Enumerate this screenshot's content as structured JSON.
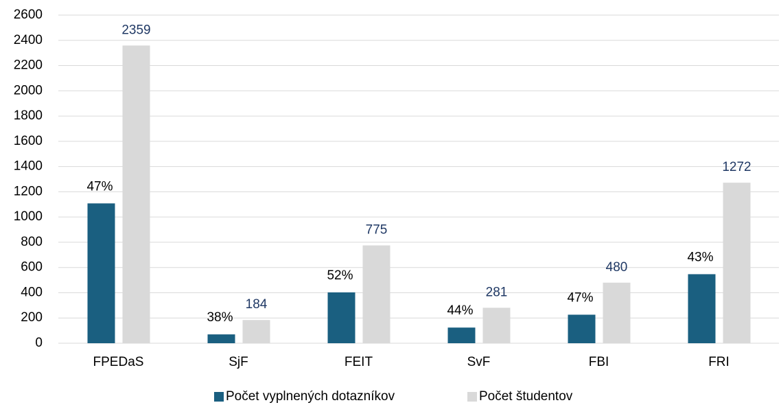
{
  "chart_data": {
    "type": "bar",
    "categories": [
      "FPEDaS",
      "SjF",
      "FEIT",
      "SvF",
      "FBI",
      "FRI"
    ],
    "series": [
      {
        "name": "Počet vyplnených dotazníkov",
        "color": "#1a5f80",
        "values": [
          1108,
          70,
          403,
          124,
          226,
          547
        ]
      },
      {
        "name": "Počet študentov",
        "color": "#d9d9d9",
        "values": [
          2359,
          184,
          775,
          281,
          480,
          1272
        ]
      }
    ],
    "annotations": [
      "47%",
      "38%",
      "52%",
      "44%",
      "47%",
      "43%"
    ],
    "ylim": [
      0,
      2600
    ],
    "yticks": [
      0,
      200,
      400,
      600,
      800,
      1000,
      1200,
      1400,
      1600,
      1800,
      2000,
      2200,
      2400,
      2600
    ],
    "grid": true,
    "legend": "bottom"
  }
}
